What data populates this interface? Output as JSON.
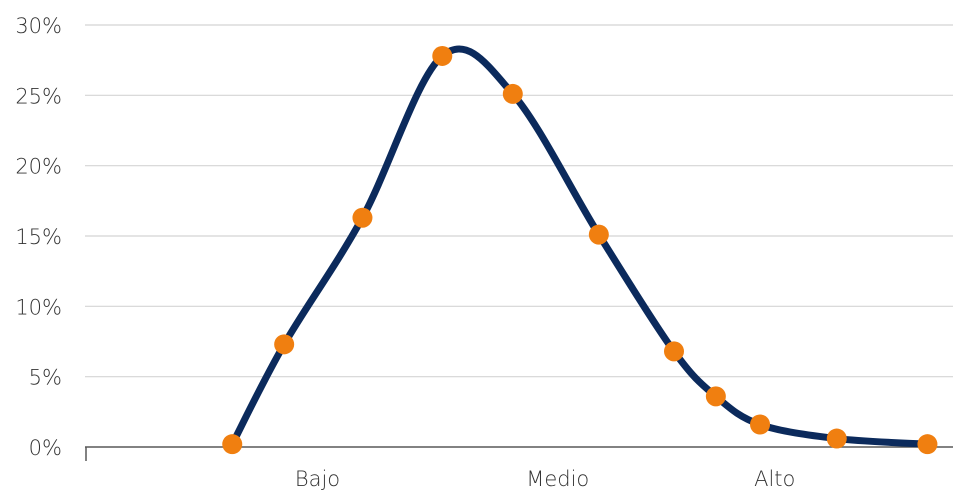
{
  "chart_data": {
    "type": "line",
    "title": "",
    "xlabel": "",
    "ylabel": "",
    "categories": [
      "Bajo",
      "Medio",
      "Alto"
    ],
    "ylim": [
      0,
      30
    ],
    "y_ticks": [
      "0%",
      "5%",
      "10%",
      "15%",
      "20%",
      "25%",
      "30%"
    ],
    "y_tick_values": [
      0,
      5,
      10,
      15,
      20,
      25,
      30
    ],
    "grid": true,
    "legend": "none",
    "colors": {
      "line": "#0b2a5c",
      "marker": "#f07f10",
      "grid": "#d4d4d4",
      "axis": "#595959"
    },
    "series": [
      {
        "x": [
          1.0,
          1.67,
          2.68,
          3.71,
          4.62,
          5.73,
          6.7,
          7.24,
          7.81,
          8.8,
          9.97
        ],
        "values": [
          0.2,
          7.3,
          16.3,
          27.8,
          25.1,
          15.1,
          6.8,
          3.6,
          1.6,
          0.6,
          0.2
        ]
      }
    ],
    "category_positions": [
      2.1,
      5.2,
      8.0
    ],
    "xlim": [
      -0.9,
      10.3
    ]
  }
}
